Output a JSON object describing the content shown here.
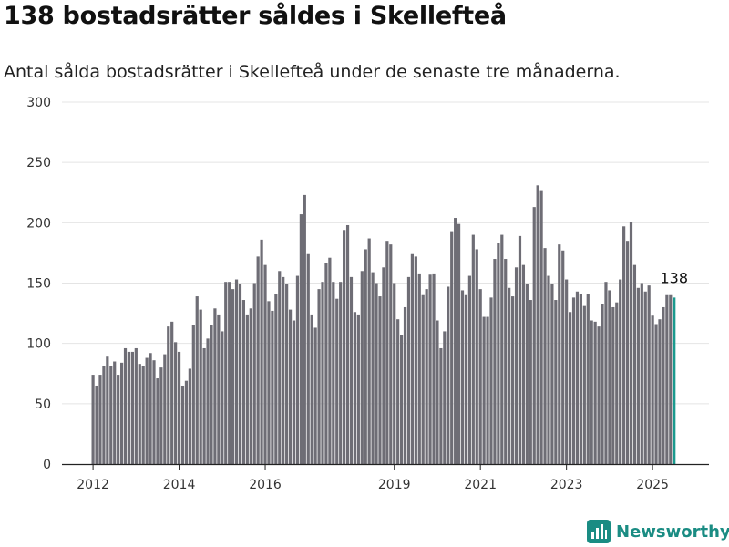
{
  "title": "138 bostadsrätter såldes i Skellefteå",
  "subtitle": "Antal sålda bostadsrätter i Skellefteå under de senaste tre månaderna.",
  "brand": "Newsworthy",
  "colors": {
    "bar": "#6e6d75",
    "highlight": "#1a9a8e",
    "grid": "#e4e4e4",
    "brand": "#1a8c83"
  },
  "chart_data": {
    "type": "bar",
    "ylim": [
      0,
      300
    ],
    "yticks": [
      0,
      50,
      100,
      150,
      200,
      250,
      300
    ],
    "xticks": [
      "2012",
      "2014",
      "2016",
      "2019",
      "2021",
      "2023",
      "2025"
    ],
    "grid": true,
    "start": "2012-01",
    "highlight_label": "138",
    "values": [
      74,
      65,
      74,
      81,
      89,
      81,
      85,
      74,
      84,
      96,
      93,
      93,
      96,
      83,
      81,
      88,
      92,
      86,
      71,
      80,
      91,
      114,
      118,
      101,
      93,
      65,
      69,
      79,
      115,
      139,
      128,
      96,
      104,
      115,
      129,
      124,
      110,
      151,
      151,
      145,
      153,
      149,
      136,
      124,
      129,
      150,
      172,
      186,
      165,
      135,
      127,
      141,
      160,
      155,
      149,
      128,
      119,
      156,
      207,
      223,
      174,
      124,
      113,
      145,
      151,
      167,
      171,
      151,
      137,
      151,
      194,
      198,
      155,
      126,
      124,
      160,
      178,
      187,
      159,
      150,
      139,
      163,
      185,
      182,
      150,
      120,
      107,
      130,
      155,
      174,
      172,
      158,
      140,
      145,
      157,
      158,
      119,
      96,
      110,
      147,
      193,
      204,
      199,
      144,
      140,
      156,
      190,
      178,
      145,
      122,
      122,
      138,
      170,
      183,
      190,
      170,
      146,
      139,
      163,
      189,
      165,
      149,
      136,
      213,
      231,
      227,
      179,
      156,
      149,
      136,
      182,
      177,
      153,
      126,
      138,
      143,
      141,
      131,
      141,
      119,
      118,
      114,
      133,
      151,
      144,
      130,
      134,
      153,
      197,
      185,
      201,
      165,
      146,
      150,
      143,
      148,
      123,
      116,
      120,
      130,
      140,
      140,
      138
    ]
  }
}
